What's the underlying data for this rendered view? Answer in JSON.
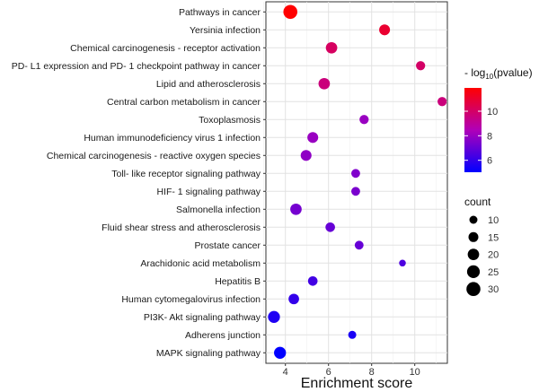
{
  "chart_data": {
    "type": "scatter",
    "title": "",
    "xlabel": "Enrichment score",
    "ylabel": "",
    "xlim": [
      3.2,
      11.5
    ],
    "xticks": [
      4,
      6,
      8,
      10
    ],
    "grid": true,
    "categories": [
      "Pathways in cancer",
      "Yersinia infection",
      "Chemical carcinogenesis -  receptor activation",
      "PD- L1 expression and PD- 1 checkpoint pathway in cancer",
      "Lipid and atherosclerosis",
      "Central carbon metabolism in cancer",
      "Toxoplasmosis",
      "Human immunodeficiency virus 1 infection",
      "Chemical carcinogenesis -  reactive oxygen species",
      "Toll- like receptor signaling pathway",
      "HIF- 1 signaling pathway",
      "Salmonella infection",
      "Fluid shear stress and atherosclerosis",
      "Prostate cancer",
      "Arachidonic acid metabolism",
      "Hepatitis B",
      "Human cytomegalovirus infection",
      "PI3K- Akt signaling pathway",
      "Adherens junction",
      "MAPK signaling pathway"
    ],
    "enrichment_score": [
      4.23,
      8.6,
      6.14,
      10.27,
      5.8,
      11.27,
      7.65,
      5.27,
      4.96,
      7.26,
      7.26,
      4.49,
      6.08,
      7.42,
      9.43,
      5.27,
      4.39,
      3.47,
      7.1,
      3.75
    ],
    "neg_log10_pvalue": [
      11.9,
      11.0,
      10.1,
      10.0,
      9.6,
      9.6,
      8.0,
      8.0,
      7.8,
      7.5,
      7.4,
      7.3,
      7.0,
      7.0,
      6.5,
      6.3,
      6.0,
      5.6,
      5.5,
      5.0
    ],
    "count": [
      30,
      18,
      20,
      13,
      20,
      13,
      13,
      18,
      18,
      12,
      12,
      20,
      14,
      12,
      7,
      14,
      17,
      22,
      10,
      22
    ],
    "color_legend": {
      "title_prefix": "- log",
      "title_sub": "10",
      "title_suffix": "(pvalue)",
      "range": [
        5.0,
        11.9
      ],
      "ticks": [
        "6",
        "8",
        "10"
      ],
      "low_color": "#0000ff",
      "mid_color": "#b000b8",
      "high_color": "#ff0000",
      "placement": "right"
    },
    "size_legend": {
      "title": "count",
      "values": [
        "10",
        "15",
        "20",
        "25",
        "30"
      ],
      "placement": "right"
    }
  }
}
